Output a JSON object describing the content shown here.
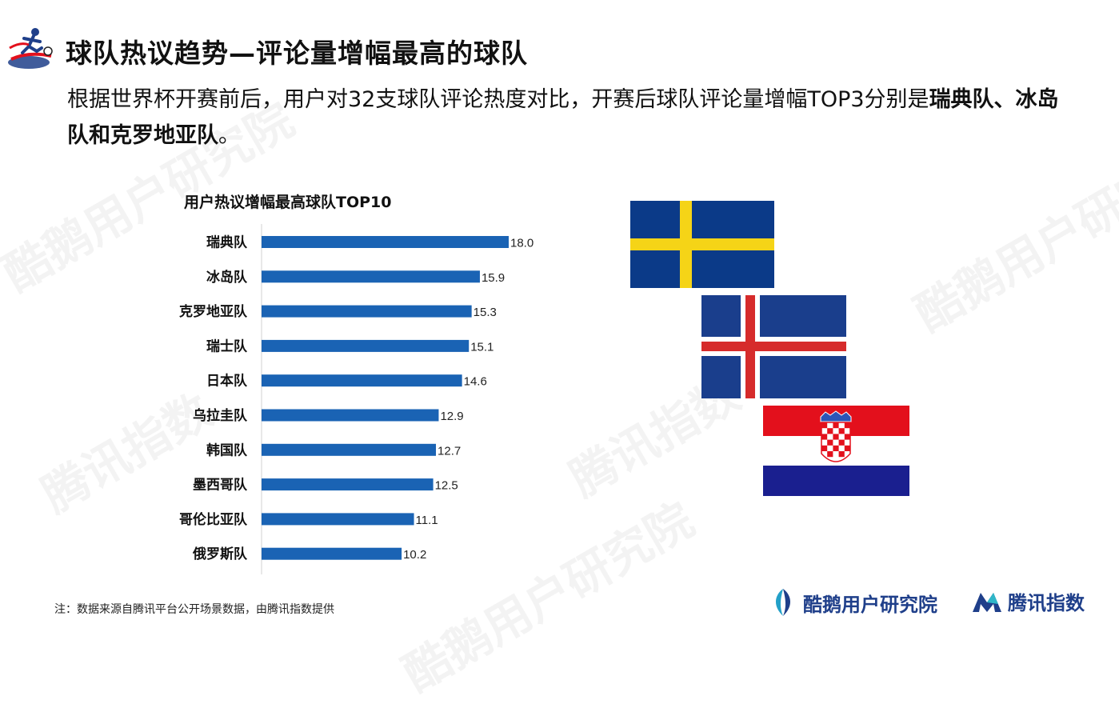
{
  "header": {
    "title": "球队热议趋势—评论量增幅最高的球队",
    "subtitle_text": "根据世界杯开赛前后，用户对32支球队评论热度对比，开赛后球队评论量增幅TOP3分别是",
    "subtitle_bold": "瑞典队、冰岛队和克罗地亚队",
    "subtitle_end": "。"
  },
  "chart_data": {
    "type": "bar",
    "orientation": "horizontal",
    "title": "用户热议增幅最高球队TOP10",
    "categories": [
      "瑞典队",
      "冰岛队",
      "克罗地亚队",
      "瑞士队",
      "日本队",
      "乌拉圭队",
      "韩国队",
      "墨西哥队",
      "哥伦比亚队",
      "俄罗斯队"
    ],
    "values": [
      18.0,
      15.9,
      15.3,
      15.1,
      14.6,
      12.9,
      12.7,
      12.5,
      11.1,
      10.2
    ],
    "value_labels": [
      "18.0",
      "15.9",
      "15.3",
      "15.1",
      "14.6",
      "12.9",
      "12.7",
      "12.5",
      "11.1",
      "10.2"
    ],
    "xlim": [
      0,
      18
    ],
    "bar_color": "#1a63b4",
    "grid": false
  },
  "flags": [
    "sweden-flag",
    "iceland-flag",
    "croatia-flag"
  ],
  "footnote": "注：数据来源自腾讯平台公开场景数据，由腾讯指数提供",
  "brands": {
    "kuer": "酷鹅用户研究院",
    "tencent": "腾讯指数"
  },
  "watermarks": [
    "腾讯指数",
    "酷鹅用户研究院"
  ],
  "colors": {
    "bar": "#1a63b4",
    "brand_blue": "#1f3f8a",
    "sweden_blue": "#0b3a88",
    "sweden_yellow": "#f5d417",
    "iceland_blue": "#1a3e8c",
    "iceland_red": "#d62b2b",
    "croatia_red": "#e3101c",
    "croatia_blue": "#1a1f8f"
  }
}
